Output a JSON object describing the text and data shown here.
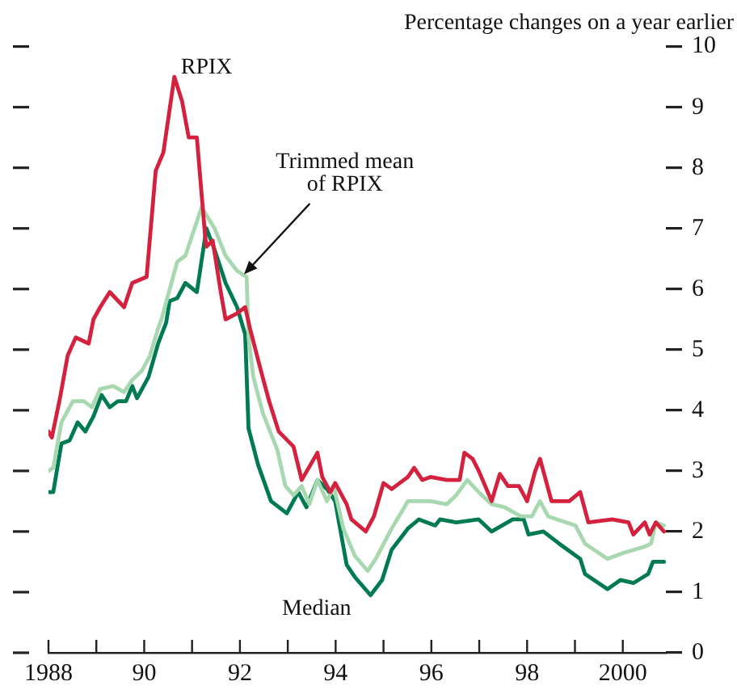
{
  "chart_data": {
    "type": "line",
    "title": "Percentage changes on a year earlier",
    "xlim": [
      1988,
      2000.9
    ],
    "xticks": [
      1988,
      {
        "value": 1989,
        "label": null
      },
      {
        "value": 1990,
        "label": "90"
      },
      {
        "value": 1991,
        "label": null
      },
      {
        "value": 1992,
        "label": "92"
      },
      {
        "value": 1993,
        "label": null
      },
      {
        "value": 1994,
        "label": "94"
      },
      {
        "value": 1995,
        "label": null
      },
      {
        "value": 1996,
        "label": "96"
      },
      {
        "value": 1997,
        "label": null
      },
      {
        "value": 1998,
        "label": "98"
      },
      {
        "value": 1999,
        "label": null
      },
      2000
    ],
    "ylim": [
      0,
      10
    ],
    "yticks": [
      0,
      1,
      2,
      3,
      4,
      5,
      6,
      7,
      8,
      9,
      10
    ],
    "series": [
      {
        "color": "#d4213d",
        "x": [
          1988,
          1988.07,
          1988.24,
          1988.4,
          1988.57,
          1988.84,
          1988.94,
          1989.08,
          1989.28,
          1989.58,
          1989.75,
          1990.05,
          1990.24,
          1990.4,
          1990.63,
          1990.79,
          1990.93,
          1991.1,
          1991.27,
          1991.3,
          1991.43,
          1991.6,
          1991.7,
          1991.94,
          1992.11,
          1992.21,
          1992.44,
          1992.61,
          1992.81,
          1993.12,
          1993.29,
          1993.62,
          1993.72,
          1993.89,
          1993.99,
          1994.23,
          1994.33,
          1994.63,
          1994.8,
          1995,
          1995.17,
          1995.51,
          1995.64,
          1995.81,
          1995.98,
          1996.32,
          1996.59,
          1996.69,
          1996.86,
          1996.99,
          1997.26,
          1997.43,
          1997.6,
          1997.83,
          1998,
          1998.17,
          1998.27,
          1998.51,
          1998.88,
          1999.11,
          1999.28,
          1999.78,
          2000.12,
          2000.22,
          2000.46,
          2000.56,
          2000.69,
          2000.86
        ],
        "values": [
          3.65,
          3.55,
          4.2,
          4.9,
          5.2,
          5.1,
          5.5,
          5.7,
          5.95,
          5.7,
          6.1,
          6.2,
          7.95,
          8.25,
          9.5,
          9.1,
          8.5,
          8.5,
          6.9,
          6.7,
          6.8,
          5.95,
          5.5,
          5.6,
          5.7,
          5.35,
          4.65,
          4.15,
          3.65,
          3.4,
          2.85,
          3.3,
          2.9,
          2.65,
          2.8,
          2.45,
          2.2,
          2.0,
          2.25,
          2.8,
          2.7,
          2.9,
          3.05,
          2.85,
          2.9,
          2.85,
          2.85,
          3.3,
          3.2,
          3.0,
          2.5,
          2.95,
          2.75,
          2.75,
          2.5,
          3.0,
          3.2,
          2.5,
          2.5,
          2.65,
          2.15,
          2.2,
          2.15,
          1.95,
          2.15,
          1.95,
          2.15,
          2.0
        ]
      },
      {
        "color": "#a8d8b0",
        "x": [
          1988,
          1988.1,
          1988.27,
          1988.51,
          1988.74,
          1988.91,
          1989.08,
          1989.35,
          1989.58,
          1989.75,
          1989.95,
          1990.12,
          1990.29,
          1990.36,
          1990.69,
          1990.86,
          1991.2,
          1991.47,
          1991.7,
          1991.94,
          1992.14,
          1992.18,
          1992.28,
          1992.48,
          1992.78,
          1992.95,
          1993.12,
          1993.29,
          1993.45,
          1993.62,
          1993.82,
          1993.96,
          1994.16,
          1994.4,
          1994.67,
          1994.84,
          1995.17,
          1995.51,
          1995.74,
          1995.98,
          1996.32,
          1996.52,
          1996.75,
          1996.99,
          1997.26,
          1997.53,
          1997.87,
          1998.1,
          1998.27,
          1998.44,
          1999.01,
          1999.21,
          1999.68,
          2000.02,
          2000.46,
          2000.59,
          2000.69,
          2000.86
        ],
        "values": [
          3.0,
          3.05,
          3.8,
          4.15,
          4.15,
          4.05,
          4.35,
          4.4,
          4.3,
          4.5,
          4.65,
          4.9,
          5.35,
          5.5,
          6.45,
          6.55,
          7.35,
          7.0,
          6.55,
          6.3,
          6.2,
          5.2,
          4.55,
          3.95,
          3.35,
          2.75,
          2.6,
          2.75,
          2.45,
          2.85,
          2.5,
          2.75,
          2.05,
          1.6,
          1.35,
          1.55,
          2.05,
          2.5,
          2.5,
          2.5,
          2.45,
          2.6,
          2.85,
          2.65,
          2.45,
          2.4,
          2.25,
          2.25,
          2.5,
          2.25,
          2.1,
          1.8,
          1.55,
          1.65,
          1.75,
          1.8,
          2.15,
          2.1
        ]
      },
      {
        "color": "#007a53",
        "x": [
          1988,
          1988.1,
          1988.27,
          1988.44,
          1988.61,
          1988.77,
          1988.94,
          1989.11,
          1989.28,
          1989.45,
          1989.62,
          1989.75,
          1989.85,
          1990.09,
          1990.29,
          1990.46,
          1990.53,
          1990.69,
          1990.86,
          1991.1,
          1991.3,
          1991.47,
          1991.7,
          1991.94,
          1992.11,
          1992.18,
          1992.38,
          1992.65,
          1992.98,
          1993.22,
          1993.39,
          1993.62,
          1993.82,
          1993.99,
          1994.23,
          1994.4,
          1994.73,
          1994.97,
          1995.17,
          1995.51,
          1995.74,
          1996.08,
          1996.18,
          1996.52,
          1996.99,
          1997.26,
          1997.7,
          1997.93,
          1998.03,
          1998.34,
          1998.67,
          1999.11,
          1999.21,
          1999.68,
          1999.95,
          2000.22,
          2000.53,
          2000.63,
          2000.86
        ],
        "values": [
          2.65,
          2.65,
          3.45,
          3.5,
          3.8,
          3.65,
          3.9,
          4.25,
          4.05,
          4.15,
          4.15,
          4.4,
          4.2,
          4.55,
          5.1,
          5.45,
          5.8,
          5.85,
          6.1,
          5.95,
          7.0,
          6.65,
          6.1,
          5.7,
          5.25,
          3.7,
          3.1,
          2.5,
          2.3,
          2.65,
          2.4,
          2.85,
          2.7,
          2.5,
          1.45,
          1.25,
          0.95,
          1.2,
          1.7,
          2.05,
          2.2,
          2.1,
          2.2,
          2.15,
          2.2,
          2.0,
          2.2,
          2.2,
          1.95,
          2.0,
          1.8,
          1.55,
          1.3,
          1.05,
          1.2,
          1.15,
          1.3,
          1.5,
          1.5
        ]
      }
    ],
    "annotations": [
      {
        "text": "RPIX",
        "x": 1990.63,
        "y": 9.5
      },
      "Trimmed mean of RPIX",
      {
        "text": "Median",
        "x": 1994.73,
        "y": 0.95
      }
    ]
  }
}
